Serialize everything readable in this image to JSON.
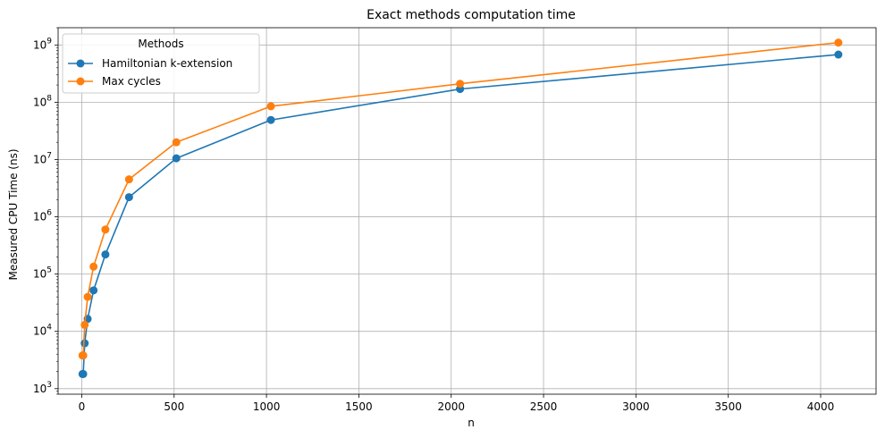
{
  "chart_data": {
    "type": "line",
    "title": "Exact methods computation time",
    "xlabel": "n",
    "ylabel": "Measured CPU Time (ns)",
    "xlim": [
      -128,
      4300
    ],
    "ylim": [
      800,
      2000000000
    ],
    "yscale": "log",
    "grid": true,
    "legend": {
      "title": "Methods",
      "placement": "top-left"
    },
    "x_ticks": [
      {
        "value": 0,
        "label": "0"
      },
      {
        "value": 500,
        "label": "500"
      },
      {
        "value": 1000,
        "label": "1000"
      },
      {
        "value": 1500,
        "label": "1500"
      },
      {
        "value": 2000,
        "label": "2000"
      },
      {
        "value": 2500,
        "label": "2500"
      },
      {
        "value": 3000,
        "label": "3000"
      },
      {
        "value": 3500,
        "label": "3500"
      },
      {
        "value": 4000,
        "label": "4000"
      }
    ],
    "y_ticks": [
      {
        "value": 1000,
        "base": "10",
        "exp": "3"
      },
      {
        "value": 10000,
        "base": "10",
        "exp": "4"
      },
      {
        "value": 100000,
        "base": "10",
        "exp": "5"
      },
      {
        "value": 1000000,
        "base": "10",
        "exp": "6"
      },
      {
        "value": 10000000,
        "base": "10",
        "exp": "7"
      },
      {
        "value": 100000000,
        "base": "10",
        "exp": "8"
      },
      {
        "value": 1000000000,
        "base": "10",
        "exp": "9"
      }
    ],
    "series": [
      {
        "name": "Hamiltonian k-extension",
        "color": "#1f77b4",
        "x": [
          4,
          8,
          16,
          32,
          64,
          128,
          256,
          512,
          1024,
          2048,
          4096
        ],
        "y": [
          1800,
          1800,
          6200,
          16500,
          52000,
          220000,
          2200000,
          10500000,
          49000000,
          170000000,
          680000000
        ]
      },
      {
        "name": "Max cycles",
        "color": "#ff7f0e",
        "x": [
          4,
          8,
          16,
          32,
          64,
          128,
          256,
          512,
          1024,
          2048,
          4096
        ],
        "y": [
          3800,
          3800,
          13000,
          40000,
          135000,
          600000,
          4500000,
          20000000,
          85000000,
          210000000,
          1100000000
        ]
      }
    ]
  }
}
